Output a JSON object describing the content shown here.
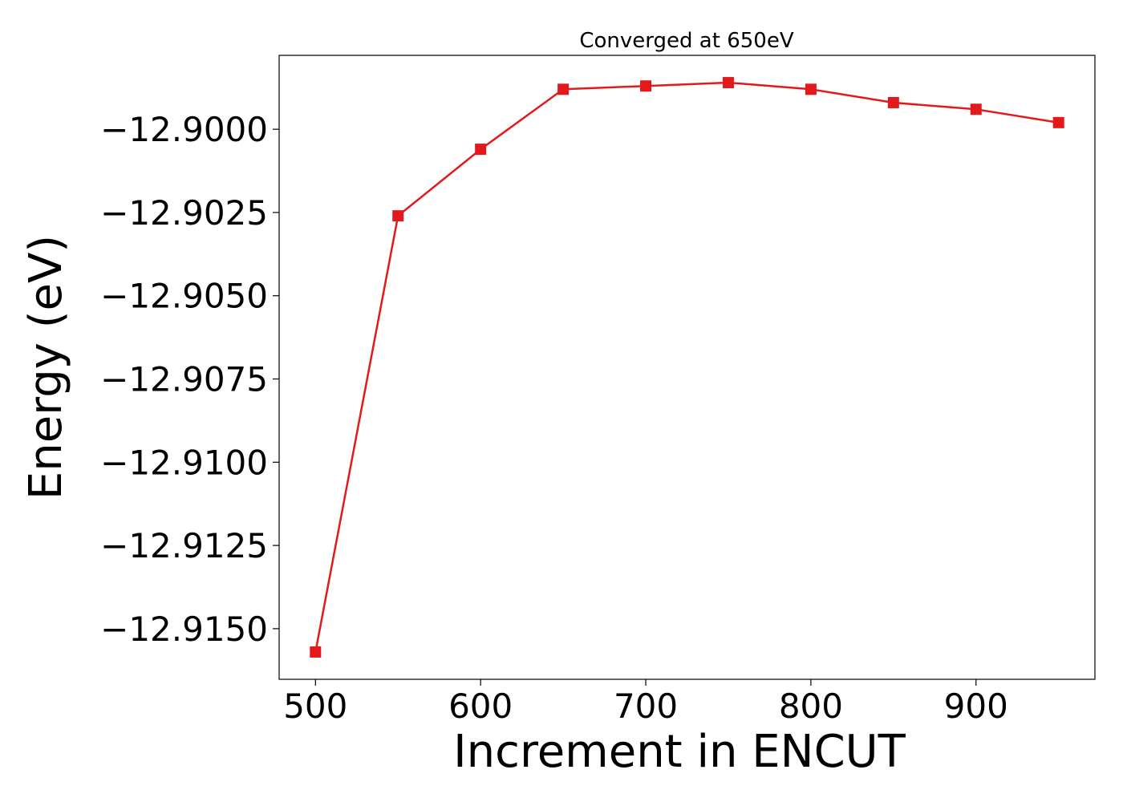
{
  "chart_data": {
    "type": "line",
    "title": "Converged at 650eV",
    "xlabel": "Increment in ENCUT",
    "ylabel": "Energy (eV)",
    "x": [
      500,
      550,
      600,
      650,
      700,
      750,
      800,
      850,
      900,
      950
    ],
    "series": [
      {
        "name": "",
        "color": "#e31a1c",
        "marker": "square",
        "values": [
          -12.9157,
          -12.9026,
          -12.9006,
          -12.8988,
          -12.8987,
          -12.8986,
          -12.8988,
          -12.8992,
          -12.8994,
          -12.8998
        ]
      }
    ],
    "xticks": [
      500,
      600,
      700,
      800,
      900
    ],
    "xtick_labels": [
      "500",
      "600",
      "700",
      "800",
      "900"
    ],
    "yticks": [
      -12.915,
      -12.9125,
      -12.91,
      -12.9075,
      -12.905,
      -12.9025,
      -12.9
    ],
    "ytick_labels": [
      "−12.9150",
      "−12.9125",
      "−12.9100",
      "−12.9075",
      "−12.9050",
      "−12.9025",
      "−12.9000"
    ],
    "xlim": [
      478,
      972
    ],
    "ylim": [
      -12.91652,
      -12.89778
    ],
    "grid": false,
    "legend": "none"
  }
}
